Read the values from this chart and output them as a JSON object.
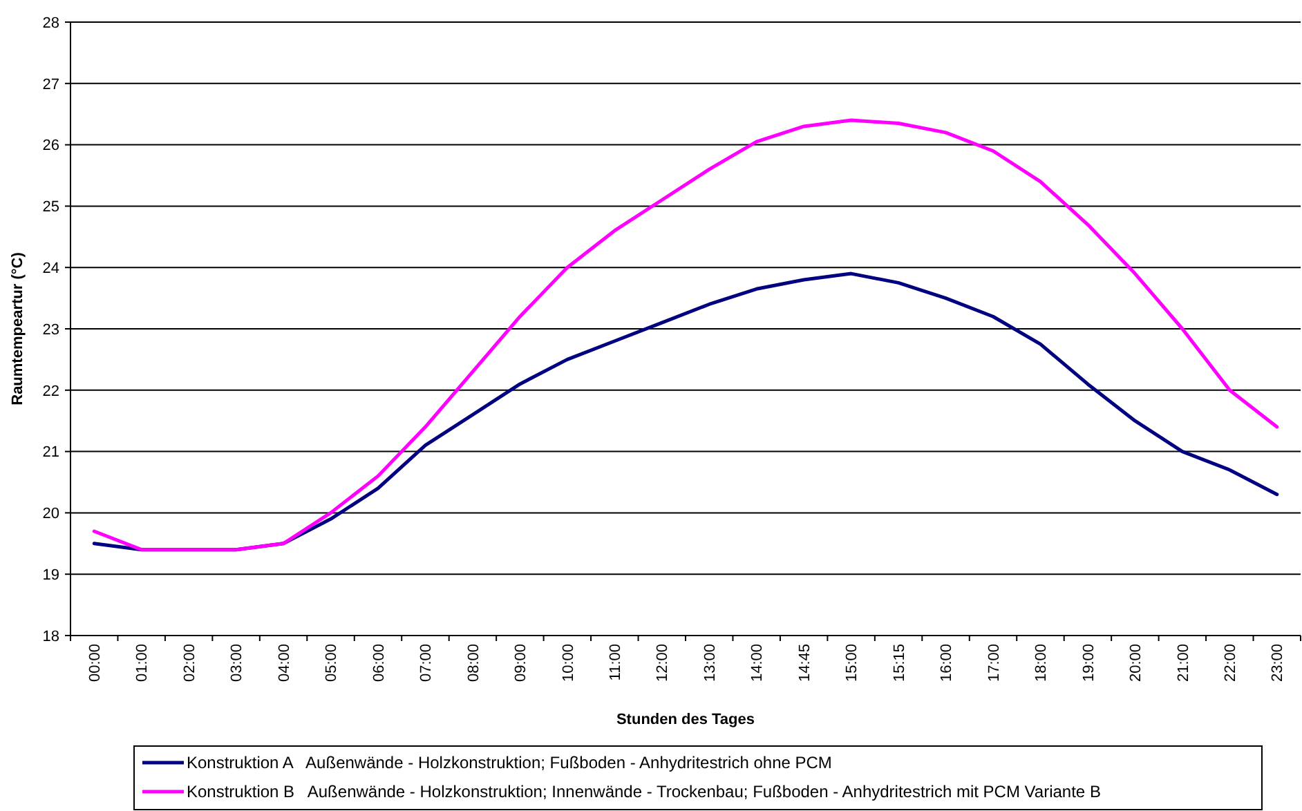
{
  "chart_data": {
    "type": "line",
    "xlabel": "Stunden des Tages",
    "ylabel": "Raumtempeartur (°C)",
    "categories": [
      "00:00",
      "01:00",
      "02:00",
      "03:00",
      "04:00",
      "05:00",
      "06:00",
      "07:00",
      "08:00",
      "09:00",
      "10:00",
      "11:00",
      "12:00",
      "13:00",
      "14:00",
      "14:45",
      "15:00",
      "15:15",
      "16:00",
      "17:00",
      "18:00",
      "19:00",
      "20:00",
      "21:00",
      "22:00",
      "23:00"
    ],
    "series": [
      {
        "name": "Konstruktion A   Außenwände - Holzkonstruktion; Fußboden - Anhydritestrich ohne PCM",
        "color": "#000080",
        "values": [
          19.5,
          19.4,
          19.4,
          19.4,
          19.5,
          19.9,
          20.4,
          21.1,
          21.6,
          22.1,
          22.5,
          22.8,
          23.1,
          23.4,
          23.65,
          23.8,
          23.9,
          23.75,
          23.5,
          23.2,
          22.75,
          22.1,
          21.5,
          21.0,
          20.7,
          20.3
        ]
      },
      {
        "name": "Konstruktion B   Außenwände - Holzkonstruktion; Innenwände - Trockenbau; Fußboden - Anhydritestrich mit PCM Variante B",
        "color": "#ff00ff",
        "values": [
          19.7,
          19.4,
          19.4,
          19.4,
          19.5,
          20.0,
          20.6,
          21.4,
          22.3,
          23.2,
          24.0,
          24.6,
          25.1,
          25.6,
          26.05,
          26.3,
          26.4,
          26.35,
          26.2,
          25.9,
          25.4,
          24.7,
          23.9,
          23.0,
          22.0,
          21.4
        ]
      }
    ],
    "ylim": [
      18,
      28
    ],
    "yticks": [
      18,
      19,
      20,
      21,
      22,
      23,
      24,
      25,
      26,
      27,
      28
    ],
    "grid": "y",
    "legend": "bottom",
    "marker": "none",
    "line_style": "solid"
  }
}
